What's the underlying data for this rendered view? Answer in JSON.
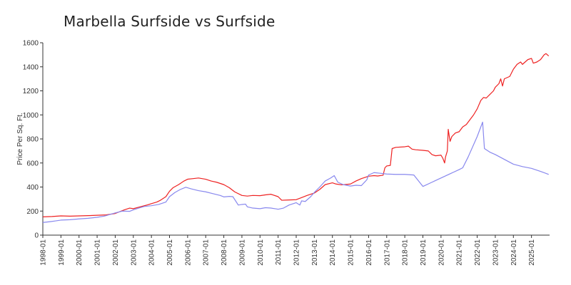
{
  "chart_data": {
    "type": "line",
    "title": "Marbella Surfside vs Surfside",
    "xlabel": "",
    "ylabel": "Price Per Sq. Ft.",
    "ylim": [
      0,
      1600
    ],
    "xlim": [
      1998.0,
      2026.0
    ],
    "grid": false,
    "y_ticks": [
      0,
      200,
      400,
      600,
      800,
      1000,
      1200,
      1400,
      1600
    ],
    "x_ticks": [
      "1998-01",
      "1999-01",
      "2000-01",
      "2001-01",
      "2002-01",
      "2003-01",
      "2004-01",
      "2005-01",
      "2006-01",
      "2007-01",
      "2008-01",
      "2009-01",
      "2010-01",
      "2011-01",
      "2012-01",
      "2013-01",
      "2014-01",
      "2015-01",
      "2016-01",
      "2017-01",
      "2018-01",
      "2019-01",
      "2020-01",
      "2021-01",
      "2022-01",
      "2023-01",
      "2024-01",
      "2025-01"
    ],
    "series": [
      {
        "name": "Marbella Surfside",
        "color": "#ee2222",
        "points": [
          [
            1998.0,
            152
          ],
          [
            1998.5,
            155
          ],
          [
            1999.0,
            160
          ],
          [
            1999.5,
            158
          ],
          [
            2000.0,
            160
          ],
          [
            2000.5,
            162
          ],
          [
            2001.0,
            165
          ],
          [
            2001.5,
            168
          ],
          [
            2002.0,
            180
          ],
          [
            2002.3,
            198
          ],
          [
            2002.5,
            210
          ],
          [
            2002.8,
            225
          ],
          [
            2003.0,
            220
          ],
          [
            2003.3,
            232
          ],
          [
            2003.5,
            240
          ],
          [
            2003.8,
            252
          ],
          [
            2004.0,
            262
          ],
          [
            2004.3,
            275
          ],
          [
            2004.5,
            290
          ],
          [
            2004.8,
            320
          ],
          [
            2005.0,
            365
          ],
          [
            2005.2,
            395
          ],
          [
            2005.5,
            420
          ],
          [
            2005.8,
            450
          ],
          [
            2006.0,
            465
          ],
          [
            2006.3,
            470
          ],
          [
            2006.6,
            475
          ],
          [
            2007.0,
            465
          ],
          [
            2007.3,
            450
          ],
          [
            2007.6,
            440
          ],
          [
            2008.0,
            420
          ],
          [
            2008.3,
            395
          ],
          [
            2008.6,
            360
          ],
          [
            2009.0,
            330
          ],
          [
            2009.3,
            325
          ],
          [
            2009.6,
            330
          ],
          [
            2010.0,
            328
          ],
          [
            2010.3,
            335
          ],
          [
            2010.6,
            340
          ],
          [
            2011.0,
            320
          ],
          [
            2011.2,
            290
          ],
          [
            2011.5,
            292
          ],
          [
            2012.0,
            295
          ],
          [
            2012.3,
            312
          ],
          [
            2012.6,
            330
          ],
          [
            2013.0,
            350
          ],
          [
            2013.3,
            380
          ],
          [
            2013.6,
            420
          ],
          [
            2014.0,
            435
          ],
          [
            2014.2,
            425
          ],
          [
            2014.5,
            418
          ],
          [
            2015.0,
            425
          ],
          [
            2015.3,
            450
          ],
          [
            2015.6,
            470
          ],
          [
            2016.0,
            490
          ],
          [
            2016.3,
            495
          ],
          [
            2016.5,
            492
          ],
          [
            2016.8,
            498
          ],
          [
            2016.9,
            560
          ],
          [
            2017.0,
            575
          ],
          [
            2017.2,
            580
          ],
          [
            2017.3,
            720
          ],
          [
            2017.5,
            730
          ],
          [
            2018.0,
            735
          ],
          [
            2018.2,
            740
          ],
          [
            2018.4,
            715
          ],
          [
            2018.6,
            710
          ],
          [
            2019.0,
            705
          ],
          [
            2019.3,
            700
          ],
          [
            2019.5,
            670
          ],
          [
            2019.7,
            660
          ],
          [
            2020.0,
            665
          ],
          [
            2020.1,
            640
          ],
          [
            2020.2,
            600
          ],
          [
            2020.25,
            650
          ],
          [
            2020.35,
            700
          ],
          [
            2020.4,
            880
          ],
          [
            2020.5,
            780
          ],
          [
            2020.6,
            820
          ],
          [
            2020.8,
            850
          ],
          [
            2021.0,
            860
          ],
          [
            2021.2,
            900
          ],
          [
            2021.4,
            920
          ],
          [
            2021.6,
            960
          ],
          [
            2021.8,
            1000
          ],
          [
            2022.0,
            1050
          ],
          [
            2022.2,
            1120
          ],
          [
            2022.35,
            1145
          ],
          [
            2022.5,
            1140
          ],
          [
            2022.7,
            1170
          ],
          [
            2022.9,
            1200
          ],
          [
            2023.0,
            1230
          ],
          [
            2023.2,
            1260
          ],
          [
            2023.3,
            1300
          ],
          [
            2023.4,
            1240
          ],
          [
            2023.5,
            1300
          ],
          [
            2023.8,
            1320
          ],
          [
            2024.0,
            1380
          ],
          [
            2024.2,
            1420
          ],
          [
            2024.4,
            1440
          ],
          [
            2024.5,
            1420
          ],
          [
            2024.8,
            1460
          ],
          [
            2025.0,
            1470
          ],
          [
            2025.1,
            1430
          ],
          [
            2025.3,
            1440
          ],
          [
            2025.5,
            1460
          ],
          [
            2025.7,
            1500
          ],
          [
            2025.8,
            1510
          ],
          [
            2025.95,
            1490
          ]
        ]
      },
      {
        "name": "Surfside",
        "color": "#8888ee",
        "points": [
          [
            1998.0,
            105
          ],
          [
            1998.4,
            112
          ],
          [
            1998.7,
            118
          ],
          [
            1999.0,
            125
          ],
          [
            1999.5,
            128
          ],
          [
            2000.0,
            135
          ],
          [
            2000.5,
            140
          ],
          [
            2001.0,
            148
          ],
          [
            2001.4,
            158
          ],
          [
            2002.0,
            185
          ],
          [
            2002.4,
            200
          ],
          [
            2002.8,
            198
          ],
          [
            2003.0,
            210
          ],
          [
            2003.3,
            225
          ],
          [
            2003.6,
            238
          ],
          [
            2004.0,
            245
          ],
          [
            2004.4,
            255
          ],
          [
            2004.8,
            275
          ],
          [
            2005.0,
            320
          ],
          [
            2005.3,
            355
          ],
          [
            2005.6,
            380
          ],
          [
            2005.9,
            398
          ],
          [
            2006.2,
            385
          ],
          [
            2006.6,
            370
          ],
          [
            2007.0,
            360
          ],
          [
            2007.4,
            345
          ],
          [
            2007.8,
            330
          ],
          [
            2008.0,
            318
          ],
          [
            2008.3,
            322
          ],
          [
            2008.5,
            320
          ],
          [
            2008.8,
            250
          ],
          [
            2009.0,
            255
          ],
          [
            2009.2,
            258
          ],
          [
            2009.3,
            235
          ],
          [
            2009.6,
            225
          ],
          [
            2010.0,
            220
          ],
          [
            2010.3,
            228
          ],
          [
            2010.6,
            225
          ],
          [
            2010.9,
            218
          ],
          [
            2011.0,
            215
          ],
          [
            2011.3,
            225
          ],
          [
            2011.6,
            250
          ],
          [
            2011.9,
            265
          ],
          [
            2012.0,
            270
          ],
          [
            2012.2,
            250
          ],
          [
            2012.3,
            285
          ],
          [
            2012.5,
            280
          ],
          [
            2012.8,
            320
          ],
          [
            2013.0,
            355
          ],
          [
            2013.3,
            400
          ],
          [
            2013.6,
            450
          ],
          [
            2013.9,
            475
          ],
          [
            2014.1,
            495
          ],
          [
            2014.3,
            440
          ],
          [
            2014.6,
            420
          ],
          [
            2015.0,
            408
          ],
          [
            2015.3,
            415
          ],
          [
            2015.6,
            412
          ],
          [
            2015.9,
            460
          ],
          [
            2016.0,
            500
          ],
          [
            2016.3,
            520
          ],
          [
            2016.6,
            515
          ],
          [
            2017.0,
            508
          ],
          [
            2017.5,
            505
          ],
          [
            2018.0,
            505
          ],
          [
            2018.5,
            500
          ],
          [
            2019.0,
            405
          ],
          [
            2019.5,
            440
          ],
          [
            2020.0,
            475
          ],
          [
            2020.5,
            510
          ],
          [
            2021.0,
            545
          ],
          [
            2021.2,
            560
          ],
          [
            2021.5,
            650
          ],
          [
            2022.0,
            820
          ],
          [
            2022.3,
            940
          ],
          [
            2022.4,
            720
          ],
          [
            2022.7,
            690
          ],
          [
            2023.0,
            670
          ],
          [
            2023.5,
            630
          ],
          [
            2024.0,
            590
          ],
          [
            2024.5,
            570
          ],
          [
            2025.0,
            555
          ],
          [
            2025.5,
            530
          ],
          [
            2025.95,
            505
          ]
        ]
      }
    ]
  }
}
